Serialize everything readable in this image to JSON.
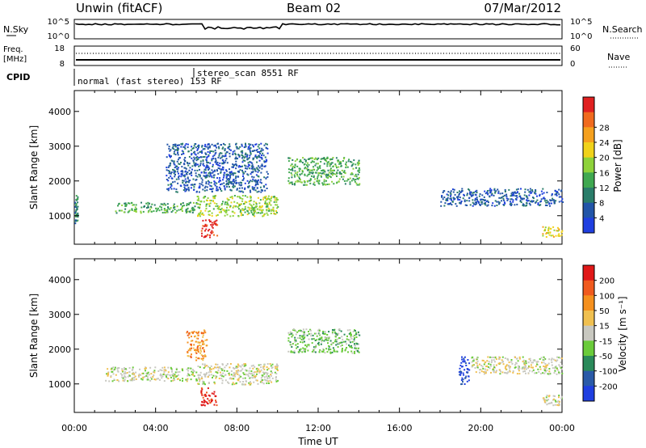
{
  "header": {
    "title": "Unwin (fitACF)",
    "beam": "Beam 02",
    "date": "07/Mar/2012"
  },
  "top_panel": {
    "left_label": "N.Sky",
    "left_ticks": [
      "10^5",
      "10^0"
    ],
    "right_label": "N.Search",
    "right_ticks": [
      "10^5",
      "10^0"
    ]
  },
  "freq_panel": {
    "left_label_1": "Freq.",
    "left_label_2": "[MHz]",
    "left_ticks": [
      "18",
      "8"
    ],
    "right_label": "Nave",
    "right_ticks": [
      "60",
      "0"
    ]
  },
  "cpid_panel": {
    "label": "CPID",
    "entries": [
      "normal (fast stereo) 153 RF",
      "stereo_scan 8551 RF"
    ]
  },
  "chart_data": [
    {
      "type": "heatmap",
      "title": "",
      "xlabel": "Time UT",
      "ylabel": "Slant Range [km]",
      "xlim": [
        0,
        24
      ],
      "ylim": [
        180,
        4600
      ],
      "x_ticks": [
        "00:00",
        "04:00",
        "08:00",
        "12:00",
        "16:00",
        "20:00",
        "00:00"
      ],
      "y_ticks": [
        1000,
        2000,
        3000,
        4000
      ],
      "colorbar": {
        "label": "Power [dB]",
        "ticks": [
          4,
          8,
          12,
          16,
          20,
          24,
          28
        ],
        "colors": [
          "#1f3fe0",
          "#2255a8",
          "#2a7d6a",
          "#3fa850",
          "#8ed23a",
          "#f0d21a",
          "#f5a01e",
          "#f06a1e",
          "#e02020"
        ]
      },
      "regions": [
        {
          "t0": 0.0,
          "t1": 0.15,
          "r0": 800,
          "r1": 1600,
          "level": 2
        },
        {
          "t0": 2.0,
          "t1": 6.0,
          "r0": 1100,
          "r1": 1400,
          "level": 3
        },
        {
          "t0": 6.0,
          "t1": 10.0,
          "r0": 1000,
          "r1": 1600,
          "level": 4
        },
        {
          "t0": 4.5,
          "t1": 9.5,
          "r0": 1700,
          "r1": 3100,
          "level": 1
        },
        {
          "t0": 6.2,
          "t1": 7.0,
          "r0": 400,
          "r1": 900,
          "level": 8
        },
        {
          "t0": 10.5,
          "t1": 14.0,
          "r0": 1900,
          "r1": 2700,
          "level": 3
        },
        {
          "t0": 18.0,
          "t1": 24.0,
          "r0": 1300,
          "r1": 1800,
          "level": 1
        },
        {
          "t0": 23.0,
          "t1": 24.0,
          "r0": 400,
          "r1": 700,
          "level": 5
        }
      ]
    },
    {
      "type": "heatmap",
      "title": "",
      "xlabel": "Time UT",
      "ylabel": "Slant Range [km]",
      "xlim": [
        0,
        24
      ],
      "ylim": [
        180,
        4600
      ],
      "x_ticks": [
        "00:00",
        "04:00",
        "08:00",
        "12:00",
        "16:00",
        "20:00",
        "00:00"
      ],
      "y_ticks": [
        1000,
        2000,
        3000,
        4000
      ],
      "colorbar": {
        "label": "Velocity [m s⁻¹]",
        "ticks": [
          "200",
          "100",
          "50",
          "15",
          "-15",
          "-50",
          "-100",
          "-200"
        ],
        "colors": [
          "#1f3fe0",
          "#2a5aa8",
          "#2a8a5a",
          "#6acb3a",
          "#c8c8c0",
          "#f0c050",
          "#f5901e",
          "#f05a1e",
          "#e01818"
        ]
      },
      "regions": [
        {
          "t0": 1.5,
          "t1": 6.0,
          "r0": 1100,
          "r1": 1500,
          "level": 4
        },
        {
          "t0": 6.0,
          "t1": 10.0,
          "r0": 1000,
          "r1": 1600,
          "level": 4
        },
        {
          "t0": 5.5,
          "t1": 6.5,
          "r0": 1700,
          "r1": 2600,
          "level": 6
        },
        {
          "t0": 6.2,
          "t1": 7.0,
          "r0": 400,
          "r1": 900,
          "level": 8
        },
        {
          "t0": 10.5,
          "t1": 14.0,
          "r0": 1900,
          "r1": 2600,
          "level": 3
        },
        {
          "t0": 18.9,
          "t1": 19.4,
          "r0": 1000,
          "r1": 1800,
          "level": 0
        },
        {
          "t0": 19.5,
          "t1": 24.0,
          "r0": 1300,
          "r1": 1800,
          "level": 4
        },
        {
          "t0": 23.0,
          "t1": 24.0,
          "r0": 400,
          "r1": 700,
          "level": 4
        }
      ]
    }
  ]
}
